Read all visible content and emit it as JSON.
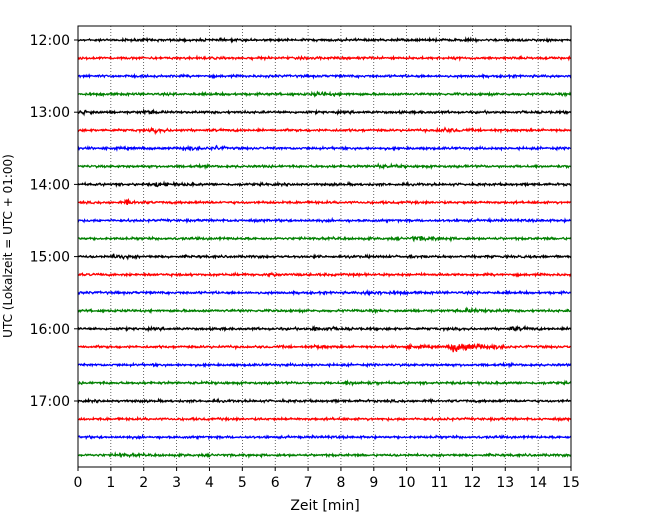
{
  "chart_data": {
    "type": "line",
    "title": "",
    "xlabel": "Zeit  [min]",
    "ylabel": "UTC (Lokalzeit = UTC + 01:00)",
    "xlim": [
      0,
      15
    ],
    "xticks": [
      0,
      1,
      2,
      3,
      4,
      5,
      6,
      7,
      8,
      9,
      10,
      11,
      12,
      13,
      14,
      15
    ],
    "xtick_labels": [
      "0",
      "1",
      "2",
      "3",
      "4",
      "5",
      "6",
      "7",
      "8",
      "9",
      "10",
      "11",
      "12",
      "13",
      "14",
      "15"
    ],
    "grid": "vertical dotted",
    "legend": "none",
    "ytick_labels": [
      "12:00",
      "13:00",
      "14:00",
      "15:00",
      "16:00",
      "17:00"
    ],
    "trace_colors": [
      "#000000",
      "#ff0000",
      "#0000ff",
      "#008000"
    ],
    "rows": [
      {
        "start": "12:00",
        "color": "#000000",
        "events": []
      },
      {
        "start": "12:15",
        "color": "#ff0000",
        "events": []
      },
      {
        "start": "12:30",
        "color": "#0000ff",
        "events": []
      },
      {
        "start": "12:45",
        "color": "#008000",
        "events": [
          {
            "t": 7.2,
            "amp": 1.6,
            "dur": 0.6
          }
        ]
      },
      {
        "start": "13:00",
        "color": "#000000",
        "events": [
          {
            "t": 0.1,
            "amp": 2.8,
            "dur": 0.25
          },
          {
            "t": 2.0,
            "amp": 1.6,
            "dur": 0.3
          }
        ]
      },
      {
        "start": "13:15",
        "color": "#ff0000",
        "events": [
          {
            "t": 2.3,
            "amp": 1.6,
            "dur": 0.4
          },
          {
            "t": 11.0,
            "amp": 2.2,
            "dur": 0.5
          }
        ]
      },
      {
        "start": "13:30",
        "color": "#0000ff",
        "events": [
          {
            "t": 3.2,
            "amp": 1.7,
            "dur": 0.5
          },
          {
            "t": 4.2,
            "amp": 2.0,
            "dur": 0.2
          }
        ]
      },
      {
        "start": "13:45",
        "color": "#008000",
        "events": [
          {
            "t": 9.1,
            "amp": 1.6,
            "dur": 0.4
          }
        ]
      },
      {
        "start": "14:00",
        "color": "#000000",
        "events": [
          {
            "t": 2.4,
            "amp": 1.8,
            "dur": 0.6
          }
        ]
      },
      {
        "start": "14:15",
        "color": "#ff0000",
        "events": [
          {
            "t": 1.5,
            "amp": 2.2,
            "dur": 0.3
          }
        ]
      },
      {
        "start": "14:30",
        "color": "#0000ff",
        "events": []
      },
      {
        "start": "14:45",
        "color": "#008000",
        "events": [
          {
            "t": 10.2,
            "amp": 2.0,
            "dur": 0.6
          }
        ]
      },
      {
        "start": "15:00",
        "color": "#000000",
        "events": [
          {
            "t": 1.1,
            "amp": 2.2,
            "dur": 0.4
          }
        ]
      },
      {
        "start": "15:15",
        "color": "#ff0000",
        "events": [
          {
            "t": 5.9,
            "amp": 1.6,
            "dur": 0.2
          }
        ]
      },
      {
        "start": "15:30",
        "color": "#0000ff",
        "events": [
          {
            "t": 8.8,
            "amp": 1.9,
            "dur": 0.6
          }
        ]
      },
      {
        "start": "15:45",
        "color": "#008000",
        "events": [
          {
            "t": 11.8,
            "amp": 1.9,
            "dur": 0.6
          }
        ]
      },
      {
        "start": "16:00",
        "color": "#000000",
        "events": [
          {
            "t": 7.2,
            "amp": 1.9,
            "dur": 0.5
          },
          {
            "t": 13.2,
            "amp": 1.8,
            "dur": 0.4
          }
        ]
      },
      {
        "start": "16:15",
        "color": "#ff0000",
        "events": [
          {
            "t": 7.2,
            "amp": 1.4,
            "dur": 0.3
          },
          {
            "t": 10.0,
            "amp": 1.8,
            "dur": 0.3
          },
          {
            "t": 11.4,
            "amp": 6.5,
            "dur": 0.8
          }
        ]
      },
      {
        "start": "16:30",
        "color": "#0000ff",
        "events": []
      },
      {
        "start": "16:45",
        "color": "#008000",
        "events": [
          {
            "t": 8.2,
            "amp": 1.7,
            "dur": 0.5
          }
        ]
      },
      {
        "start": "17:00",
        "color": "#000000",
        "events": []
      },
      {
        "start": "17:15",
        "color": "#ff0000",
        "events": []
      },
      {
        "start": "17:30",
        "color": "#0000ff",
        "events": []
      },
      {
        "start": "17:45",
        "color": "#008000",
        "events": [
          {
            "t": 1.2,
            "amp": 1.6,
            "dur": 0.4
          }
        ]
      }
    ]
  }
}
